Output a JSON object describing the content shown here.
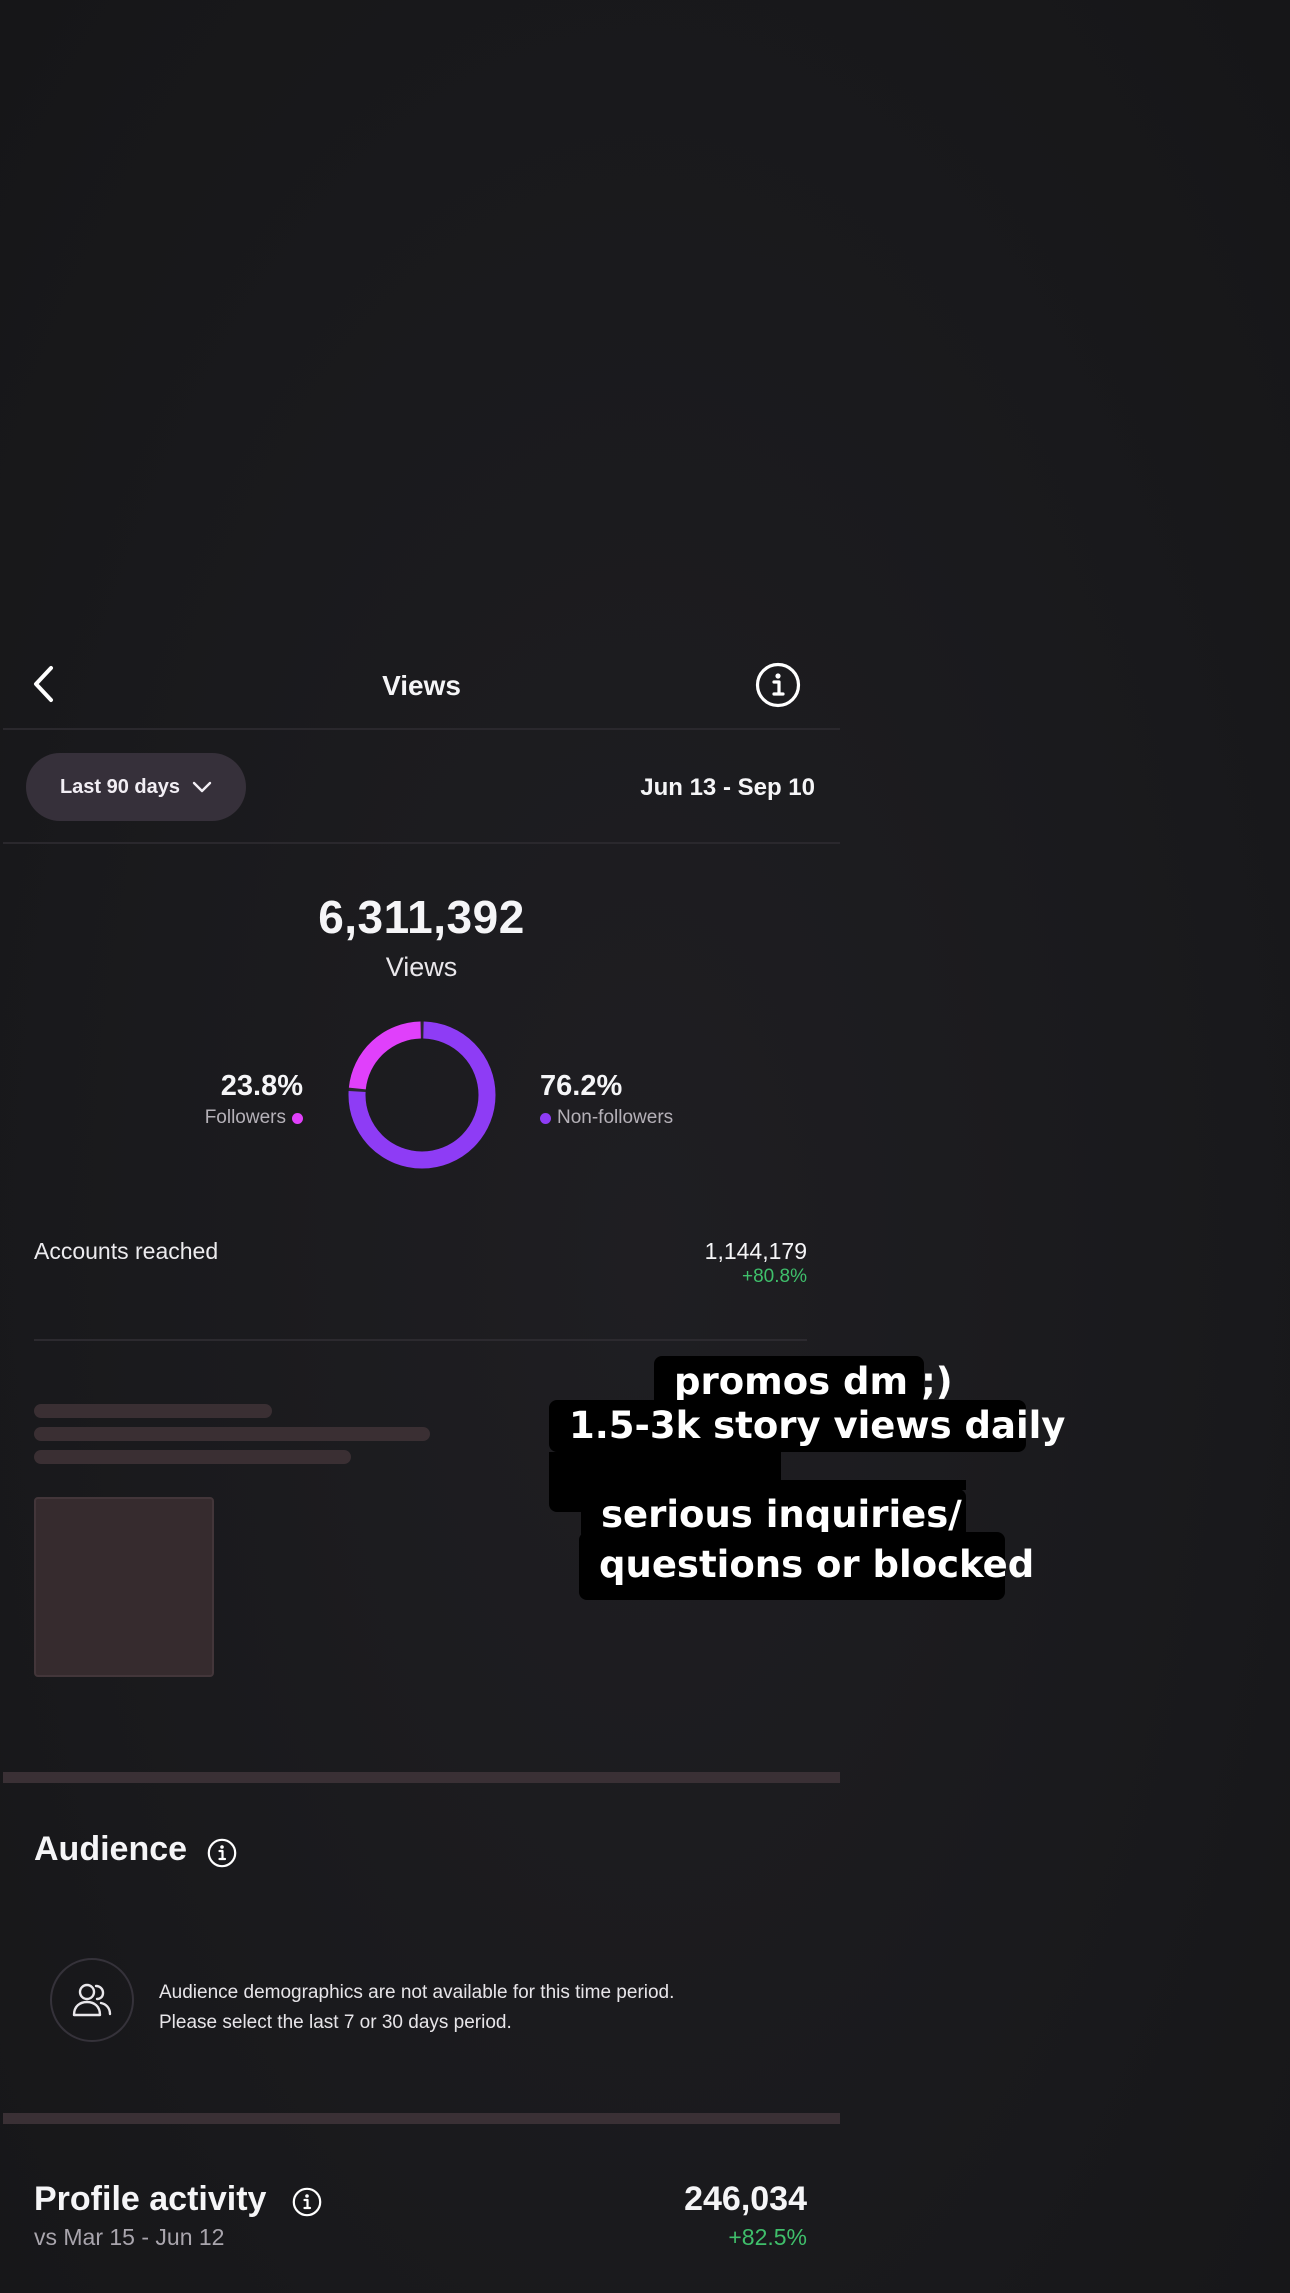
{
  "header": {
    "title": "Views"
  },
  "filter": {
    "period_label": "Last 90 days",
    "date_range": "Jun 13 - Sep 10"
  },
  "summary": {
    "total_views": "6,311,392",
    "views_label": "Views"
  },
  "breakdown": {
    "followers": {
      "percent": "23.8%",
      "label": "Followers",
      "value": 23.8,
      "color": "#e040fb"
    },
    "non_followers": {
      "percent": "76.2%",
      "label": "Non-followers",
      "value": 76.2,
      "color": "#8e3cf5"
    }
  },
  "accounts_reached": {
    "label": "Accounts reached",
    "value": "1,144,179",
    "change": "+80.8%"
  },
  "audience": {
    "title": "Audience",
    "message_line1": "Audience demographics are not available for this time period.",
    "message_line2": "Please select the last 7 or 30 days period."
  },
  "profile_activity": {
    "title": "Profile activity",
    "comparison": "vs Mar 15 - Jun 12",
    "value": "246,034",
    "change": "+82.5%"
  },
  "overlay_text": {
    "line1": "promos dm ;)",
    "line2": "1.5-3k story views daily",
    "line3": "serious inquiries/",
    "line4": "questions or blocked"
  },
  "icons": [
    "back-chevron-icon",
    "info-icon",
    "chevron-down-icon",
    "people-icon"
  ]
}
